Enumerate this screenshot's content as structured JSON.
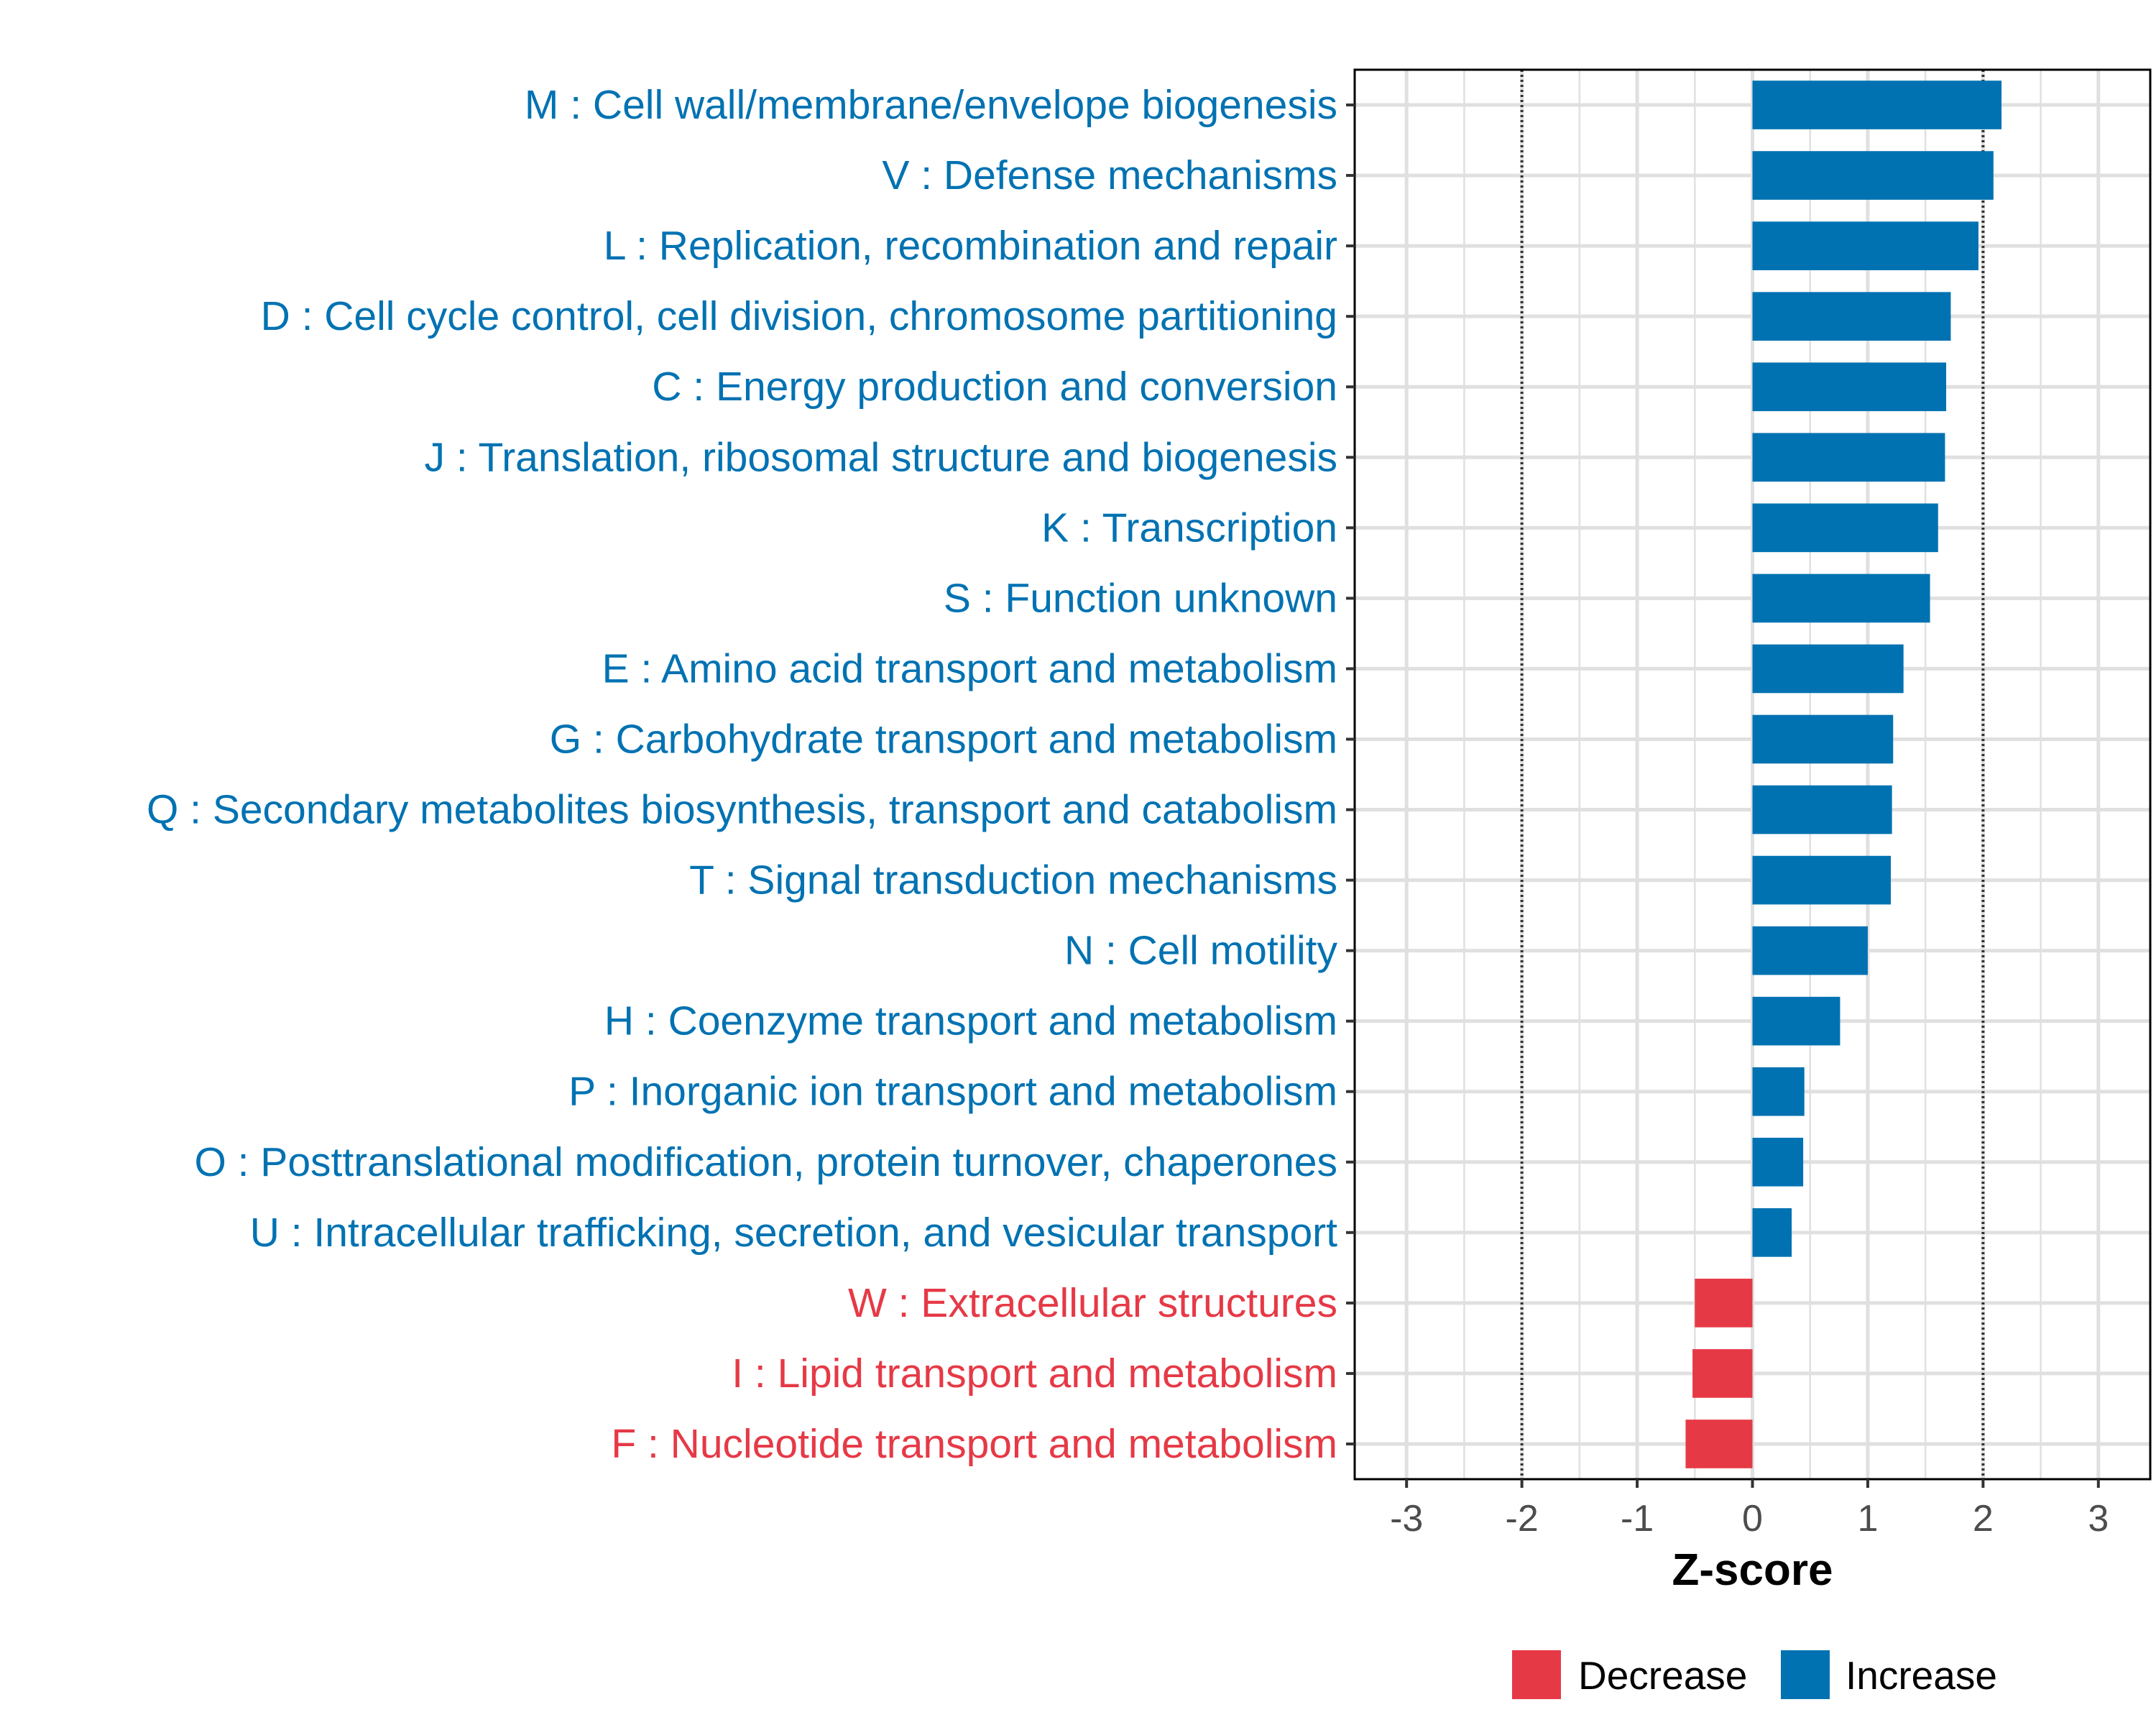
{
  "chart_data": {
    "type": "bar",
    "orientation": "horizontal",
    "xlabel": "Z-score",
    "xlim": [
      -3.45,
      3.45
    ],
    "xticks": [
      -3,
      -2,
      -1,
      0,
      1,
      2,
      3
    ],
    "xtick_labels": [
      "-3",
      "-2",
      "-1",
      "0",
      "1",
      "2",
      "3"
    ],
    "reference_lines": [
      -2,
      2
    ],
    "grid": true,
    "colors": {
      "Increase": "#0072b2",
      "Decrease": "#e63946"
    },
    "categories": [
      "M : Cell wall/membrane/envelope biogenesis",
      "V : Defense mechanisms",
      "L : Replication, recombination and repair",
      "D : Cell cycle control, cell division, chromosome partitioning",
      "C : Energy production and conversion",
      "J : Translation, ribosomal structure and biogenesis",
      "K : Transcription",
      "S : Function unknown",
      "E : Amino acid transport and metabolism",
      "G : Carbohydrate transport and metabolism",
      "Q : Secondary metabolites biosynthesis, transport and catabolism",
      "T : Signal transduction mechanisms",
      "N : Cell motility",
      "H : Coenzyme transport and metabolism",
      "P : Inorganic ion transport and metabolism",
      "O : Posttranslational modification, protein turnover, chaperones",
      "U : Intracellular trafficking, secretion, and vesicular transport",
      "W : Extracellular structures",
      "I : Lipid transport and metabolism",
      "F : Nucleotide transport and metabolism"
    ],
    "values": [
      2.16,
      2.09,
      1.96,
      1.72,
      1.68,
      1.67,
      1.61,
      1.54,
      1.31,
      1.22,
      1.21,
      1.2,
      1.0,
      0.76,
      0.45,
      0.44,
      0.34,
      -0.5,
      -0.52,
      -0.58
    ],
    "groups": [
      "Increase",
      "Increase",
      "Increase",
      "Increase",
      "Increase",
      "Increase",
      "Increase",
      "Increase",
      "Increase",
      "Increase",
      "Increase",
      "Increase",
      "Increase",
      "Increase",
      "Increase",
      "Increase",
      "Increase",
      "Decrease",
      "Decrease",
      "Decrease"
    ],
    "legend": {
      "position": "bottom",
      "entries": [
        {
          "label": "Decrease",
          "color": "#e63946"
        },
        {
          "label": "Increase",
          "color": "#0072b2"
        }
      ]
    }
  }
}
